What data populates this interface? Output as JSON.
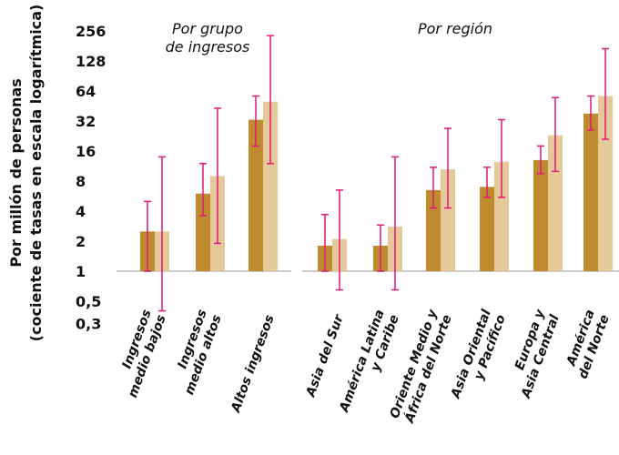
{
  "chart_data": {
    "type": "bar",
    "scale": "log",
    "ylabel_lines": [
      "Por millón de personas",
      "(cociente de tasas en escala logarítmica)"
    ],
    "yticks": [
      {
        "value": 0.3,
        "label": "0,3"
      },
      {
        "value": 0.5,
        "label": "0,5"
      },
      {
        "value": 1,
        "label": "1"
      },
      {
        "value": 2,
        "label": "2"
      },
      {
        "value": 4,
        "label": "4"
      },
      {
        "value": 8,
        "label": "8"
      },
      {
        "value": 16,
        "label": "16"
      },
      {
        "value": 32,
        "label": "32"
      },
      {
        "value": 64,
        "label": "64"
      },
      {
        "value": 128,
        "label": "128"
      },
      {
        "value": 256,
        "label": "256"
      }
    ],
    "ylim": [
      0.3,
      256
    ],
    "bar_colors": [
      "#c08a2f",
      "#e6c999"
    ],
    "error_color": "#e0197a",
    "baseline_color": "#cccccc",
    "panels": [
      {
        "title_lines": [
          "Por grupo",
          "de ingresos"
        ],
        "categories": [
          {
            "label_lines": [
              "Ingresos",
              "medio bajos"
            ],
            "bars": [
              {
                "value": 2.5,
                "low": 1.0,
                "high": 5.0
              },
              {
                "value": 2.5,
                "low": 0.4,
                "high": 14.0
              }
            ]
          },
          {
            "label_lines": [
              "Ingresos",
              "medio altos"
            ],
            "bars": [
              {
                "value": 6.0,
                "low": 3.6,
                "high": 12.0
              },
              {
                "value": 9.0,
                "low": 1.9,
                "high": 43.0
              }
            ]
          },
          {
            "label_lines": [
              "Altos ingresos"
            ],
            "bars": [
              {
                "value": 33.0,
                "low": 18.0,
                "high": 57.0
              },
              {
                "value": 50.0,
                "low": 12.0,
                "high": 230.0
              }
            ]
          }
        ]
      },
      {
        "title_lines": [
          "Por región"
        ],
        "categories": [
          {
            "label_lines": [
              "Asia del Sur"
            ],
            "bars": [
              {
                "value": 1.8,
                "low": 1.0,
                "high": 3.7
              },
              {
                "value": 2.1,
                "low": 0.65,
                "high": 6.5
              }
            ]
          },
          {
            "label_lines": [
              "América Latina",
              "y Caribe"
            ],
            "bars": [
              {
                "value": 1.8,
                "low": 1.0,
                "high": 2.9
              },
              {
                "value": 2.8,
                "low": 0.65,
                "high": 14.0
              }
            ]
          },
          {
            "label_lines": [
              "Oriente Medio y",
              "África del Norte"
            ],
            "bars": [
              {
                "value": 6.5,
                "low": 4.3,
                "high": 11.0
              },
              {
                "value": 10.5,
                "low": 4.3,
                "high": 27.0
              }
            ]
          },
          {
            "label_lines": [
              "Asia Oriental",
              "y Pacífico"
            ],
            "bars": [
              {
                "value": 7.0,
                "low": 5.5,
                "high": 11.0
              },
              {
                "value": 12.5,
                "low": 5.5,
                "high": 33.0
              }
            ]
          },
          {
            "label_lines": [
              "Europa y",
              "Asia Central"
            ],
            "bars": [
              {
                "value": 13.0,
                "low": 9.5,
                "high": 18.0
              },
              {
                "value": 23.0,
                "low": 10.0,
                "high": 55.0
              }
            ]
          },
          {
            "label_lines": [
              "América",
              "del Norte"
            ],
            "bars": [
              {
                "value": 38.0,
                "low": 26.0,
                "high": 57.0
              },
              {
                "value": 57.0,
                "low": 21.0,
                "high": 170.0
              }
            ]
          }
        ]
      }
    ]
  }
}
